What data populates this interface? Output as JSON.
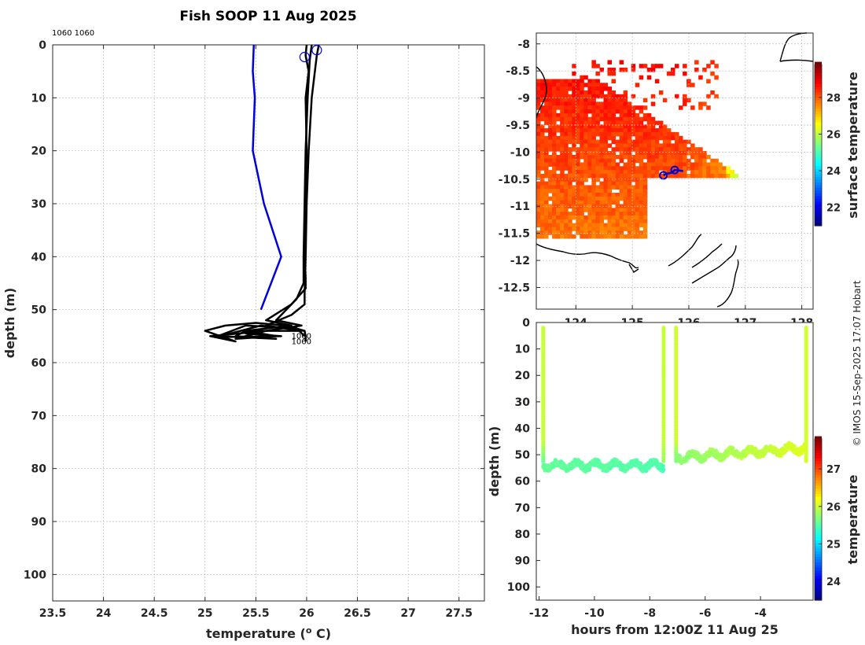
{
  "figure": {
    "title": "Fish SOOP 11 Aug 2025",
    "credit": "© IMOS 15-Sep-2025 17:07 Hobart",
    "station_ids_label": "1060 1060"
  },
  "chart_data": [
    {
      "type": "line",
      "panel": "profile",
      "xlabel": "temperature (o C)",
      "ylabel": "depth (m)",
      "xlim": [
        23.5,
        27.75
      ],
      "ylim": [
        0,
        105
      ],
      "y_reversed": true,
      "grid": true,
      "x_ticks": [
        "23.5",
        "24",
        "24.5",
        "25",
        "25.5",
        "26",
        "26.5",
        "27",
        "27.5"
      ],
      "y_ticks": [
        "0",
        "10",
        "20",
        "30",
        "40",
        "50",
        "60",
        "70",
        "80",
        "90",
        "100"
      ],
      "annotations": [
        {
          "text": "1060",
          "x": 25.85,
          "y": 55.5
        },
        {
          "text": "1060",
          "x": 25.85,
          "y": 56.5
        }
      ],
      "series": [
        {
          "color": "#0000dd",
          "x": [
            25.48,
            25.47,
            25.49,
            25.47,
            25.58,
            25.75,
            25.55
          ],
          "y": [
            0,
            5,
            10,
            20,
            30,
            40,
            50
          ]
        },
        {
          "color": "#000000",
          "x": [
            26.0,
            25.99,
            26.02,
            25.99,
            26.0,
            25.99,
            25.98,
            25.99,
            25.99,
            25.85,
            25.6,
            25.85,
            25.4,
            25.7,
            25.3,
            25.6,
            25.05,
            25.3,
            25.0,
            25.2,
            25.5,
            25.8,
            25.98,
            25.99,
            25.99
          ],
          "y": [
            0,
            2,
            5,
            10,
            20,
            30,
            40,
            44,
            46,
            49,
            52,
            53,
            54,
            55,
            55.5,
            54,
            55,
            56,
            54,
            53,
            52.5,
            53,
            54,
            55,
            56
          ]
        },
        {
          "color": "#000000",
          "x": [
            26.05,
            26.03,
            26.01,
            25.99,
            25.98,
            25.97,
            25.97,
            25.9,
            25.7,
            25.95,
            25.6,
            25.4,
            25.75,
            25.1,
            25.4,
            25.9,
            25.98
          ],
          "y": [
            0,
            3,
            10,
            20,
            30,
            40,
            45,
            48,
            52,
            53,
            54,
            54.5,
            55,
            55.2,
            53,
            53.5,
            55
          ]
        },
        {
          "color": "#000000",
          "x": [
            26.12,
            26.1,
            26.05,
            26.02,
            26.0,
            25.99,
            25.98,
            25.98,
            25.85,
            25.6,
            25.95,
            25.4,
            25.3,
            25.7,
            25.15,
            25.55,
            25.98
          ],
          "y": [
            0,
            2,
            10,
            20,
            30,
            40,
            47,
            49,
            51,
            53,
            54,
            54,
            55,
            55.5,
            55,
            53,
            54
          ]
        }
      ],
      "markers": [
        {
          "x": 25.98,
          "y": 2.3,
          "color": "#0000dd"
        },
        {
          "x": 26.1,
          "y": 1.0,
          "color": "#0000dd"
        }
      ]
    },
    {
      "type": "heatmap",
      "panel": "map",
      "xlabel": "",
      "ylabel": "",
      "xlim": [
        123.3,
        128.2
      ],
      "ylim": [
        -12.9,
        -7.8
      ],
      "x_ticks": [
        "124",
        "125",
        "126",
        "127",
        "128"
      ],
      "y_ticks": [
        "-8",
        "-8.5",
        "-9",
        "-9.5",
        "-10",
        "-10.5",
        "-11",
        "-11.5",
        "-12",
        "-12.5"
      ],
      "colorbar_label": "surface temperature",
      "colorbar_range": [
        21,
        29.8
      ],
      "colorbar_ticks": [
        "22",
        "24",
        "26",
        "28"
      ],
      "ship_track": {
        "lon": [
          125.55,
          125.6,
          125.7,
          125.75,
          125.9
        ],
        "lat": [
          -10.43,
          -10.4,
          -10.38,
          -10.33,
          -10.35
        ]
      },
      "markers": [
        {
          "lon": 125.55,
          "lat": -10.43
        },
        {
          "lon": 125.75,
          "lat": -10.33
        }
      ]
    },
    {
      "type": "scatter",
      "panel": "section",
      "xlabel": "hours from 12:00Z 11 Aug 25",
      "ylabel": "depth (m)",
      "xlim": [
        -12.1,
        -2.1
      ],
      "ylim": [
        0,
        105
      ],
      "y_reversed": true,
      "x_ticks": [
        "-12",
        "-10",
        "-8",
        "-6",
        "-4"
      ],
      "y_ticks": [
        "0",
        "10",
        "20",
        "30",
        "40",
        "50",
        "60",
        "70",
        "80",
        "90",
        "100"
      ],
      "colorbar_label": "temperature",
      "colorbar_range": [
        23.5,
        27.8
      ],
      "colorbar_ticks": [
        "24",
        "25",
        "26",
        "27"
      ],
      "casts": [
        {
          "x": -11.85,
          "surface_temp": 25.95,
          "bottom_temp": 25.55
        },
        {
          "x": -7.5,
          "surface_temp": 25.95,
          "bottom_temp": 25.75
        },
        {
          "x": -7.05,
          "surface_temp": 25.98,
          "bottom_temp": 25.6
        },
        {
          "x": -2.35,
          "surface_temp": 26.0,
          "bottom_temp": 26.0
        }
      ],
      "tows": [
        {
          "x_start": -11.85,
          "x_end": -7.5,
          "depth_mean": 54,
          "temp_start": 25.55,
          "temp_end": 25.45
        },
        {
          "x_start": -7.05,
          "x_end": -2.35,
          "depth_mean": 51,
          "temp_start": 25.7,
          "temp_end": 26.05
        }
      ]
    }
  ]
}
